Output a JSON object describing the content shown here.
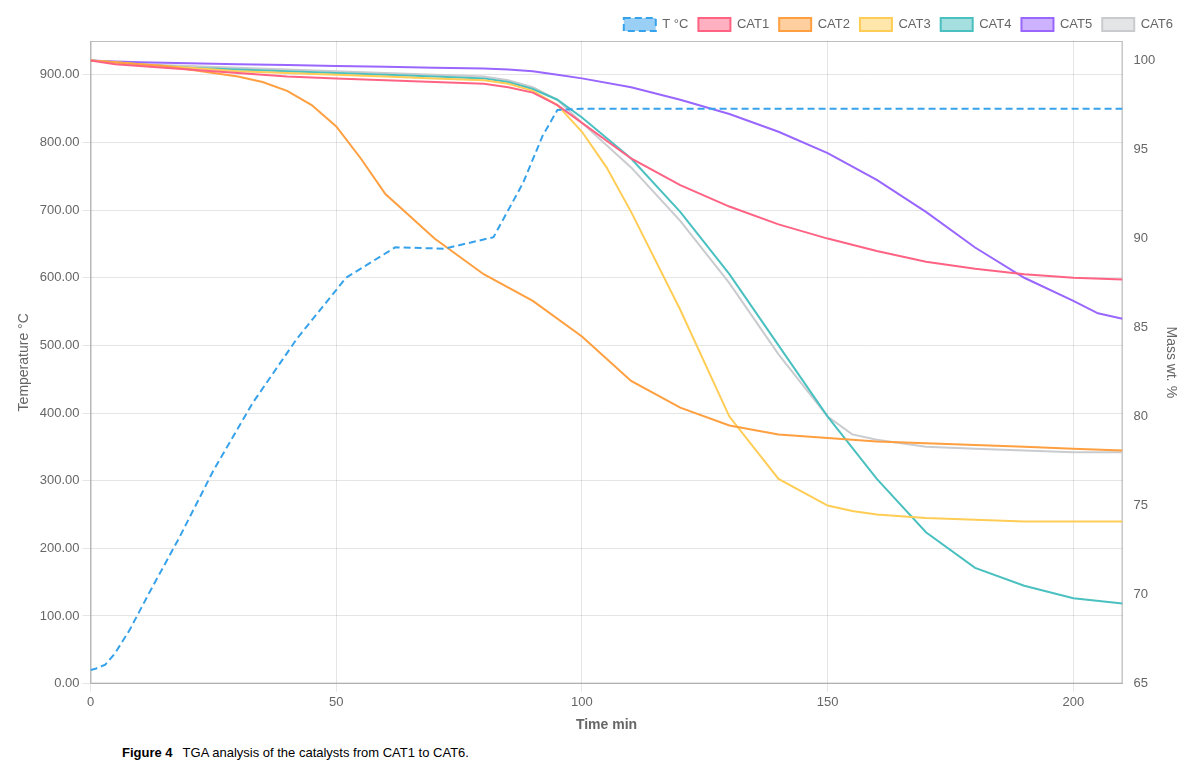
{
  "chart_data": {
    "type": "line",
    "xlabel": "Time min",
    "ylabel": "Temperature °C",
    "y2label": "Mass wt. %",
    "xlim": [
      0,
      210
    ],
    "xticks": [
      0,
      50,
      100,
      150,
      200
    ],
    "ylim": [
      0,
      950
    ],
    "yticks": [
      {
        "value": 0.0,
        "label": "0.00"
      },
      {
        "value": 100.0,
        "label": "100.00"
      },
      {
        "value": 200.0,
        "label": "200.00"
      },
      {
        "value": 300.0,
        "label": "300.00"
      },
      {
        "value": 400.0,
        "label": "400.00"
      },
      {
        "value": 500.0,
        "label": "500.00"
      },
      {
        "value": 600.0,
        "label": "600.00"
      },
      {
        "value": 700.0,
        "label": "700.00"
      },
      {
        "value": 800.0,
        "label": "800.00"
      },
      {
        "value": 900.0,
        "label": "900.00"
      }
    ],
    "y2lim": [
      65,
      101.1
    ],
    "y2ticks": [
      65,
      70,
      75,
      80,
      85,
      90,
      95,
      100
    ],
    "grid": true,
    "legend": "upper right",
    "annotations": [
      "Figure 4",
      "TGA analysis of the catalysts from CAT1 to CAT6."
    ],
    "series": [
      {
        "name": "T °C",
        "axis": "y",
        "line_style": "dashed",
        "x": [
          0,
          1,
          3,
          5,
          8,
          12,
          18,
          25,
          33,
          42,
          52,
          62,
          72,
          82,
          88,
          92,
          95,
          100,
          110,
          120,
          130,
          140,
          150,
          160,
          170,
          180,
          190,
          200,
          210
        ],
        "values": [
          20,
          22,
          28,
          45,
          80,
          135,
          215,
          315,
          415,
          510,
          600,
          645,
          643,
          660,
          740,
          810,
          848,
          850,
          850,
          850,
          850,
          850,
          850,
          850,
          850,
          850,
          850,
          850,
          850
        ]
      },
      {
        "name": "CAT1",
        "axis": "y2",
        "line_style": "solid",
        "x": [
          0,
          5,
          10,
          15,
          20,
          25,
          30,
          35,
          40,
          50,
          60,
          70,
          80,
          85,
          90,
          95,
          100,
          110,
          120,
          130,
          140,
          150,
          160,
          170,
          180,
          190,
          200,
          210
        ],
        "values": [
          100,
          99.8,
          99.7,
          99.6,
          99.5,
          99.4,
          99.3,
          99.2,
          99.1,
          99.0,
          98.9,
          98.8,
          98.7,
          98.5,
          98.2,
          97.5,
          96.5,
          94.5,
          93.0,
          91.8,
          90.8,
          90.0,
          89.3,
          88.7,
          88.3,
          88.0,
          87.8,
          87.7
        ]
      },
      {
        "name": "CAT2",
        "axis": "y2",
        "line_style": "solid",
        "x": [
          0,
          5,
          10,
          15,
          20,
          25,
          30,
          35,
          40,
          45,
          50,
          55,
          60,
          70,
          80,
          90,
          100,
          110,
          120,
          130,
          140,
          150,
          160,
          170,
          180,
          190,
          200,
          210
        ],
        "values": [
          100,
          99.9,
          99.8,
          99.7,
          99.5,
          99.3,
          99.1,
          98.8,
          98.3,
          97.5,
          96.3,
          94.5,
          92.5,
          90.0,
          88.0,
          86.5,
          84.5,
          82.0,
          80.5,
          79.5,
          79.0,
          78.8,
          78.6,
          78.5,
          78.4,
          78.3,
          78.2,
          78.1
        ]
      },
      {
        "name": "CAT3",
        "axis": "y2",
        "line_style": "solid",
        "x": [
          0,
          5,
          10,
          15,
          20,
          25,
          30,
          40,
          50,
          60,
          70,
          80,
          85,
          90,
          95,
          100,
          105,
          110,
          120,
          130,
          140,
          150,
          155,
          160,
          170,
          180,
          190,
          200,
          210
        ],
        "values": [
          100,
          99.9,
          99.8,
          99.7,
          99.6,
          99.5,
          99.4,
          99.3,
          99.2,
          99.1,
          99.0,
          98.9,
          98.7,
          98.3,
          97.5,
          96.0,
          94.0,
          91.5,
          86.0,
          80.0,
          76.5,
          75.0,
          74.7,
          74.5,
          74.3,
          74.2,
          74.1,
          74.1,
          74.1
        ]
      },
      {
        "name": "CAT4",
        "axis": "y2",
        "line_style": "solid",
        "x": [
          0,
          5,
          10,
          15,
          20,
          30,
          40,
          50,
          60,
          70,
          80,
          85,
          90,
          95,
          100,
          110,
          120,
          130,
          140,
          150,
          160,
          170,
          180,
          190,
          200,
          210
        ],
        "values": [
          100,
          99.9,
          99.8,
          99.7,
          99.6,
          99.5,
          99.4,
          99.3,
          99.2,
          99.1,
          99.0,
          98.8,
          98.4,
          97.8,
          96.8,
          94.5,
          91.5,
          88.0,
          84.0,
          80.0,
          76.5,
          73.5,
          71.5,
          70.5,
          69.8,
          69.5
        ]
      },
      {
        "name": "CAT5",
        "axis": "y2",
        "line_style": "solid",
        "x": [
          0,
          5,
          10,
          20,
          30,
          40,
          50,
          60,
          70,
          80,
          85,
          90,
          95,
          100,
          110,
          120,
          130,
          140,
          150,
          160,
          170,
          180,
          190,
          200,
          205,
          210
        ],
        "values": [
          100,
          99.95,
          99.9,
          99.85,
          99.8,
          99.75,
          99.7,
          99.65,
          99.6,
          99.55,
          99.5,
          99.4,
          99.2,
          99.0,
          98.5,
          97.8,
          97.0,
          96.0,
          94.8,
          93.3,
          91.5,
          89.5,
          87.8,
          86.5,
          85.8,
          85.5
        ]
      },
      {
        "name": "CAT6",
        "axis": "y2",
        "line_style": "solid",
        "x": [
          0,
          5,
          10,
          20,
          30,
          40,
          50,
          60,
          70,
          80,
          85,
          90,
          95,
          100,
          110,
          120,
          130,
          140,
          150,
          155,
          160,
          165,
          170,
          180,
          190,
          200,
          210
        ],
        "values": [
          100,
          99.9,
          99.8,
          99.7,
          99.6,
          99.5,
          99.4,
          99.3,
          99.2,
          99.1,
          98.9,
          98.5,
          97.8,
          96.5,
          94.0,
          91.0,
          87.5,
          83.5,
          80.0,
          79.0,
          78.7,
          78.5,
          78.3,
          78.2,
          78.1,
          78.0,
          78.0
        ]
      }
    ]
  }
}
